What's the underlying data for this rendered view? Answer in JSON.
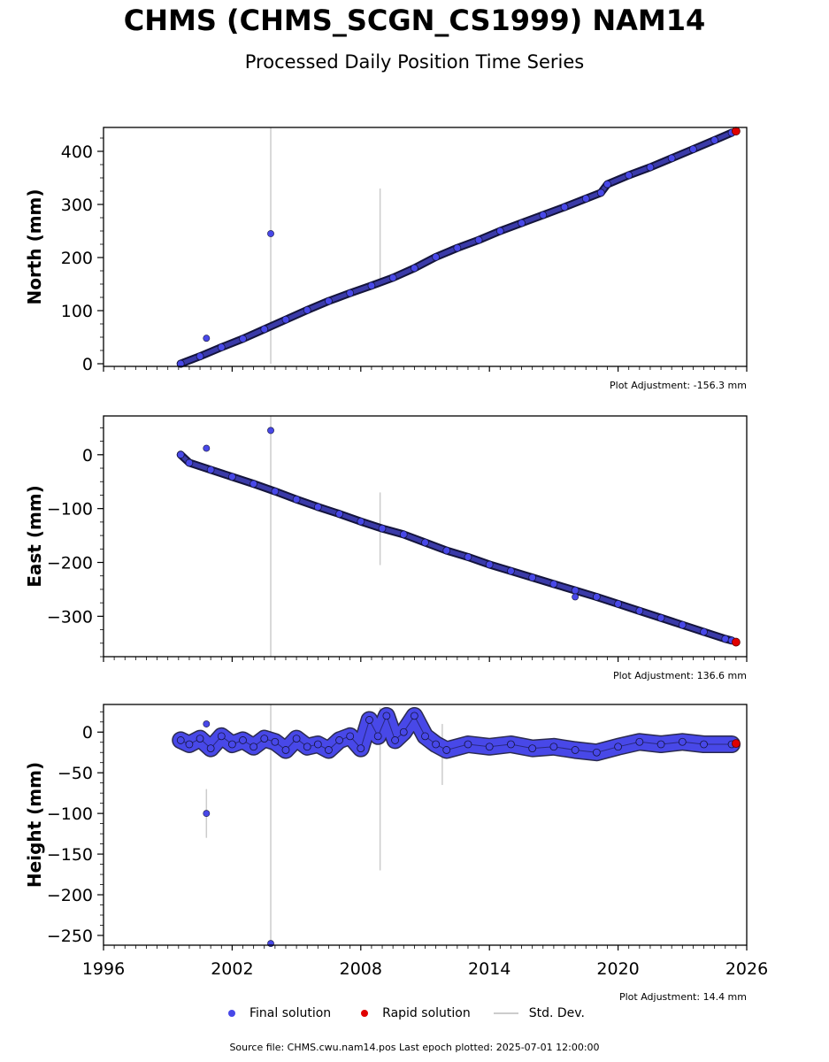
{
  "title": "CHMS (CHMS_SCGN_CS1999) NAM14",
  "subtitle": "Processed Daily Position Time Series",
  "footer": "Source file: CHMS.cwu.nam14.pos  Last epoch plotted: 2025-07-01 12:00:00",
  "legend": {
    "final_label": "Final solution",
    "rapid_label": "Rapid solution",
    "std_label": "Std. Dev."
  },
  "colors": {
    "final": "#4848e8",
    "final_edge": "#14143c",
    "rapid": "#e00000",
    "std": "#cccccc"
  },
  "chart_data": [
    {
      "type": "scatter",
      "ylabel": "North (mm)",
      "adjustment": "Plot Adjustment: -156.3 mm",
      "xlim": [
        1996,
        2026
      ],
      "ylim": [
        -5,
        445
      ],
      "yticks": [
        "0",
        "100",
        "200",
        "300",
        "400"
      ],
      "ytick_values": [
        0,
        100,
        200,
        300,
        400
      ],
      "series": [
        {
          "points": [
            [
              1999.6,
              0
            ],
            [
              2000.5,
              14
            ],
            [
              2001.5,
              31
            ],
            [
              2002.5,
              47
            ],
            [
              2003.5,
              65
            ],
            [
              2004.5,
              83
            ],
            [
              2005.5,
              101
            ],
            [
              2006.5,
              118
            ],
            [
              2007.5,
              133
            ],
            [
              2008.5,
              147
            ],
            [
              2009.5,
              162
            ],
            [
              2010.5,
              180
            ],
            [
              2011.5,
              201
            ],
            [
              2012.5,
              218
            ],
            [
              2013.5,
              233
            ],
            [
              2014.5,
              250
            ],
            [
              2015.5,
              265
            ],
            [
              2016.5,
              280
            ],
            [
              2017.5,
              295
            ],
            [
              2018.5,
              311
            ],
            [
              2019.2,
              322
            ],
            [
              2019.5,
              338
            ],
            [
              2020.5,
              355
            ],
            [
              2021.5,
              370
            ],
            [
              2022.5,
              387
            ],
            [
              2023.5,
              404
            ],
            [
              2024.5,
              421
            ],
            [
              2025.3,
              435
            ]
          ]
        },
        {
          "points": [
            [
              2025.5,
              438
            ]
          ]
        }
      ],
      "outliers": [
        [
          2000.8,
          48
        ],
        [
          2003.8,
          245
        ]
      ],
      "std_bars": [
        [
          2003.8,
          0,
          445
        ],
        [
          2008.9,
          160,
          330
        ]
      ]
    },
    {
      "type": "scatter",
      "ylabel": "East (mm)",
      "adjustment": "Plot Adjustment: 136.6 mm",
      "xlim": [
        1996,
        2026
      ],
      "ylim": [
        -375,
        72
      ],
      "yticks": [
        "0",
        "−100",
        "−200",
        "−300"
      ],
      "ytick_values": [
        0,
        -100,
        -200,
        -300
      ],
      "series": [
        {
          "points": [
            [
              1999.6,
              0
            ],
            [
              2000,
              -15
            ],
            [
              2001,
              -28
            ],
            [
              2002,
              -41
            ],
            [
              2003,
              -54
            ],
            [
              2004,
              -68
            ],
            [
              2005,
              -83
            ],
            [
              2006,
              -97
            ],
            [
              2007,
              -110
            ],
            [
              2008,
              -124
            ],
            [
              2009,
              -137
            ],
            [
              2010,
              -148
            ],
            [
              2011,
              -163
            ],
            [
              2012,
              -178
            ],
            [
              2013,
              -190
            ],
            [
              2014,
              -204
            ],
            [
              2015,
              -216
            ],
            [
              2016,
              -228
            ],
            [
              2017,
              -240
            ],
            [
              2018,
              -252
            ],
            [
              2019,
              -264
            ],
            [
              2020,
              -277
            ],
            [
              2021,
              -290
            ],
            [
              2022,
              -303
            ],
            [
              2023,
              -316
            ],
            [
              2024,
              -329
            ],
            [
              2025,
              -342
            ],
            [
              2025.3,
              -345
            ]
          ]
        },
        {
          "points": [
            [
              2025.5,
              -348
            ]
          ]
        }
      ],
      "outliers": [
        [
          2000.8,
          12
        ],
        [
          2003.8,
          45
        ],
        [
          2018,
          -264
        ]
      ],
      "std_bars": [
        [
          2003.8,
          -375,
          72
        ],
        [
          2008.9,
          -205,
          -70
        ]
      ]
    },
    {
      "type": "scatter",
      "ylabel": "Height (mm)",
      "adjustment": "Plot Adjustment: 14.4 mm",
      "xlim": [
        1996,
        2026
      ],
      "ylim": [
        -262,
        34
      ],
      "xticks": [
        "1996",
        "2002",
        "2008",
        "2014",
        "2020",
        "2026"
      ],
      "xtick_values": [
        1996,
        2002,
        2008,
        2014,
        2020,
        2026
      ],
      "yticks": [
        "0",
        "−50",
        "−100",
        "−150",
        "−200",
        "−250"
      ],
      "ytick_values": [
        0,
        -50,
        -100,
        -150,
        -200,
        -250
      ],
      "series": [
        {
          "points": [
            [
              1999.6,
              -10
            ],
            [
              2000,
              -15
            ],
            [
              2000.5,
              -8
            ],
            [
              2001,
              -20
            ],
            [
              2001.5,
              -5
            ],
            [
              2002,
              -15
            ],
            [
              2002.5,
              -10
            ],
            [
              2003,
              -18
            ],
            [
              2003.5,
              -8
            ],
            [
              2004,
              -12
            ],
            [
              2004.5,
              -22
            ],
            [
              2005,
              -8
            ],
            [
              2005.5,
              -18
            ],
            [
              2006,
              -15
            ],
            [
              2006.5,
              -22
            ],
            [
              2007,
              -10
            ],
            [
              2007.5,
              -5
            ],
            [
              2008,
              -20
            ],
            [
              2008.4,
              15
            ],
            [
              2008.8,
              -5
            ],
            [
              2009.2,
              20
            ],
            [
              2009.6,
              -10
            ],
            [
              2010,
              0
            ],
            [
              2010.5,
              20
            ],
            [
              2011,
              -5
            ],
            [
              2011.5,
              -15
            ],
            [
              2012,
              -22
            ],
            [
              2013,
              -15
            ],
            [
              2014,
              -18
            ],
            [
              2015,
              -15
            ],
            [
              2016,
              -20
            ],
            [
              2017,
              -18
            ],
            [
              2018,
              -22
            ],
            [
              2019,
              -25
            ],
            [
              2020,
              -18
            ],
            [
              2021,
              -12
            ],
            [
              2022,
              -15
            ],
            [
              2023,
              -12
            ],
            [
              2024,
              -15
            ],
            [
              2025.3,
              -15
            ]
          ]
        },
        {
          "points": [
            [
              2025.5,
              -14
            ]
          ]
        }
      ],
      "outliers": [
        [
          2000.8,
          10
        ],
        [
          2000.8,
          -100
        ],
        [
          2003.8,
          -260
        ]
      ],
      "std_bars": [
        [
          2003.8,
          -262,
          34
        ],
        [
          2008.9,
          -170,
          30
        ],
        [
          2011.8,
          -65,
          10
        ],
        [
          2000.8,
          -130,
          -70
        ]
      ]
    }
  ]
}
